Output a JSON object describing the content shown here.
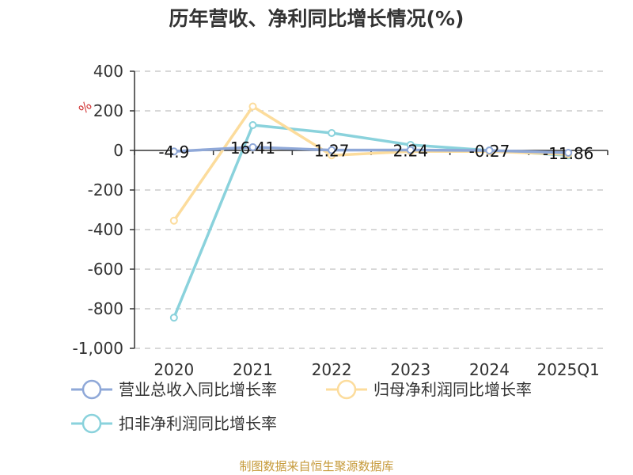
{
  "chart_data": {
    "type": "line",
    "title": "历年营收、净利同比增长情况(%)",
    "ylabel": "%",
    "categories": [
      "2020",
      "2021",
      "2022",
      "2023",
      "2024",
      "2025Q1"
    ],
    "ylim": [
      -1000,
      400
    ],
    "yticks": [
      400,
      200,
      0,
      -200,
      -400,
      -600,
      -800,
      -1000
    ],
    "ytick_labels": [
      "400",
      "200",
      "0",
      "-200",
      "-400",
      "-600",
      "-800",
      "-1,000"
    ],
    "grid": true,
    "legend_position": "bottom",
    "series": [
      {
        "name": "营业总收入同比增长率",
        "color": "#8fa8d8",
        "values": [
          -4.9,
          16.41,
          1.27,
          2.24,
          -0.27,
          -11.86
        ],
        "labels": [
          "-4.9",
          "16.41",
          "1.27",
          "2.24",
          "-0.27",
          "-11.86"
        ]
      },
      {
        "name": "归母净利润同比增长率",
        "color": "#fcdc9c",
        "values": [
          -355,
          222,
          -25,
          -5,
          -5,
          -20
        ]
      },
      {
        "name": "扣非净利润同比增长率",
        "color": "#8ad2dc",
        "values": [
          -845,
          128,
          88,
          28,
          0,
          -25
        ]
      }
    ]
  },
  "source": "制图数据来自恒生聚源数据库"
}
